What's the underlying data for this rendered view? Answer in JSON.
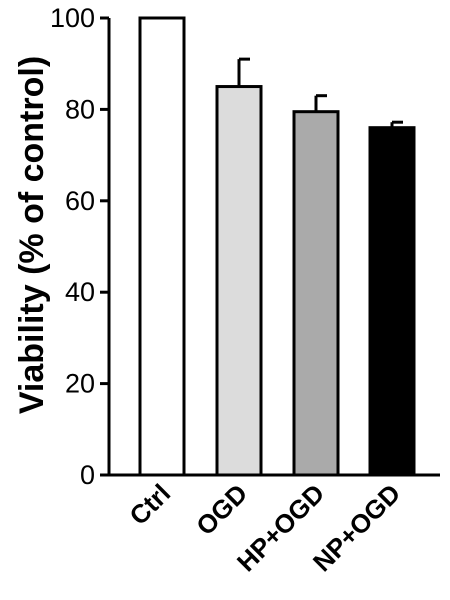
{
  "chart_data": {
    "type": "bar",
    "title": "",
    "xlabel": "",
    "ylabel": "Viability (% of control)",
    "ylim": [
      0,
      100
    ],
    "yticks": [
      0,
      20,
      40,
      60,
      80,
      100
    ],
    "categories": [
      "Ctrl",
      "OGD",
      "HP+OGD",
      "NP+OGD"
    ],
    "values": [
      100,
      85,
      79.5,
      76
    ],
    "errors": [
      0,
      6,
      3.5,
      1.2
    ],
    "bar_colors": [
      "#ffffff",
      "#dcdcdc",
      "#aaaaaa",
      "#000000"
    ],
    "grid": false
  }
}
